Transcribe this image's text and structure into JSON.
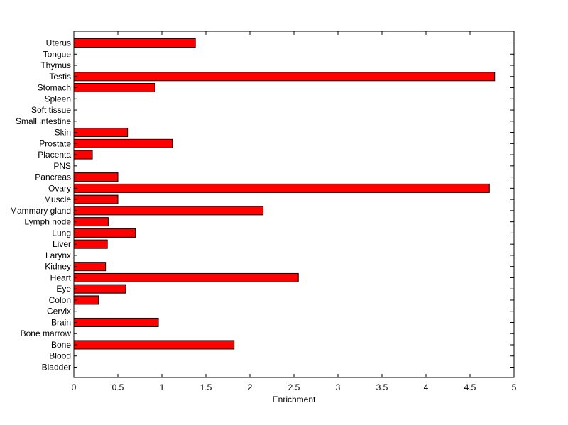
{
  "chart_data": {
    "type": "bar",
    "orientation": "horizontal",
    "xlabel": "Enrichment",
    "ylabel": "",
    "xlim": [
      0,
      5
    ],
    "x_ticks": [
      "0",
      "0.5",
      "1",
      "1.5",
      "2",
      "2.5",
      "3",
      "3.5",
      "4",
      "4.5",
      "5"
    ],
    "grid": false,
    "bar_color": "#ff0000",
    "categories": [
      "Bladder",
      "Blood",
      "Bone",
      "Bone marrow",
      "Brain",
      "Cervix",
      "Colon",
      "Eye",
      "Heart",
      "Kidney",
      "Larynx",
      "Liver",
      "Lung",
      "Lymph node",
      "Mammary gland",
      "Muscle",
      "Ovary",
      "Pancreas",
      "PNS",
      "Placenta",
      "Prostate",
      "Skin",
      "Small intestine",
      "Soft tissue",
      "Spleen",
      "Stomach",
      "Testis",
      "Thymus",
      "Tongue",
      "Uterus"
    ],
    "values": [
      0,
      0,
      1.82,
      0,
      0.96,
      0,
      0.28,
      0.59,
      2.55,
      0.36,
      0,
      0.38,
      0.7,
      0.39,
      2.15,
      0.5,
      4.72,
      0.5,
      0,
      0.21,
      1.12,
      0.61,
      0,
      0,
      0,
      0.92,
      4.78,
      0,
      0,
      1.38
    ]
  }
}
